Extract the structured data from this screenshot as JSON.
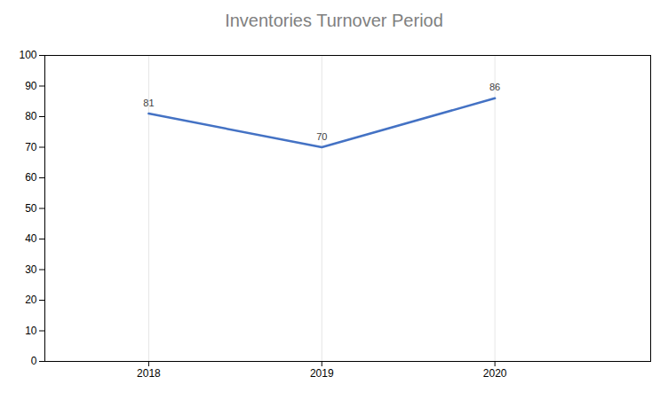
{
  "chart_data": {
    "type": "line",
    "title": "Inventories Turnover Period",
    "x": [
      2018,
      2019,
      2020
    ],
    "values": [
      81,
      70,
      86
    ],
    "color": "#4472C4",
    "xlim": [
      2017.4,
      2020.9
    ],
    "xticks": [
      2018,
      2019,
      2020
    ],
    "ylim": [
      0,
      100
    ],
    "yticks": [
      0,
      10,
      20,
      30,
      40,
      50,
      60,
      70,
      80,
      90,
      100
    ],
    "grid": true,
    "data_labels": true
  }
}
